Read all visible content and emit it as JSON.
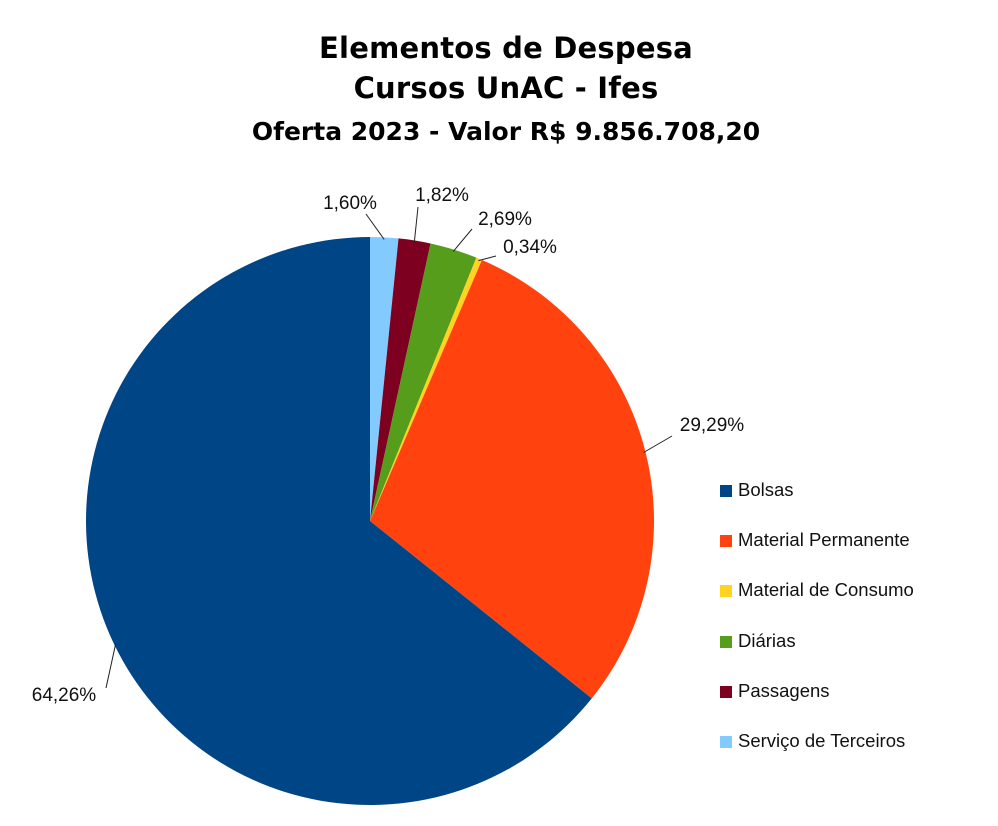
{
  "chart_data": {
    "type": "pie",
    "title_lines": [
      "Elementos de Despesa",
      "Cursos UnAC - Ifes"
    ],
    "subtitle": "Oferta 2023 - Valor R$ 9.856.708,20",
    "slices": [
      {
        "name": "Serviço de Terceiros",
        "value": 1.6,
        "label": "1,60%",
        "color": "#83caff"
      },
      {
        "name": "Passagens",
        "value": 1.82,
        "label": "1,82%",
        "color": "#7e0021"
      },
      {
        "name": "Diárias",
        "value": 2.69,
        "label": "2,69%",
        "color": "#579d1c"
      },
      {
        "name": "Material de Consumo",
        "value": 0.34,
        "label": "0,34%",
        "color": "#ffd320"
      },
      {
        "name": "Material Permanente",
        "value": 29.29,
        "label": "29,29%",
        "color": "#ff420e"
      },
      {
        "name": "Bolsas",
        "value": 64.26,
        "label": "64,26%",
        "color": "#004586"
      }
    ],
    "legend_order": [
      "Bolsas",
      "Material Permanente",
      "Material de Consumo",
      "Diárias",
      "Passagens",
      "Serviço de Terceiros"
    ],
    "legend_position": "right"
  }
}
